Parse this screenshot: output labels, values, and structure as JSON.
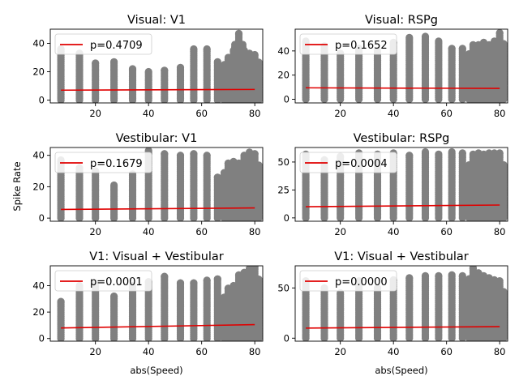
{
  "figure": {
    "ylabel": "Spike Rate",
    "xlabel": "abs(Speed)"
  },
  "colors": {
    "points": "#808080",
    "fit": "#e00000"
  },
  "chart_data": [
    {
      "type": "scatter",
      "title": "Visual: V1",
      "legend": "p=0.4709",
      "legend_position": "upper left",
      "xlim": [
        3,
        83
      ],
      "ylim": [
        -2,
        50
      ],
      "xticks": [
        20,
        40,
        60,
        80
      ],
      "yticks": [
        0,
        20,
        40
      ],
      "fit": {
        "x": [
          7,
          80
        ],
        "y": [
          7.0,
          7.5
        ]
      },
      "columns": [
        {
          "x": 7,
          "ymax": 36
        },
        {
          "x": 14,
          "ymax": 33
        },
        {
          "x": 20,
          "ymax": 26
        },
        {
          "x": 27,
          "ymax": 27
        },
        {
          "x": 34,
          "ymax": 22
        },
        {
          "x": 40,
          "ymax": 20
        },
        {
          "x": 46,
          "ymax": 21
        },
        {
          "x": 52,
          "ymax": 23
        },
        {
          "x": 57,
          "ymax": 36
        },
        {
          "x": 62,
          "ymax": 36
        },
        {
          "x": 66,
          "ymax": 27
        },
        {
          "x": 70,
          "ymax": 30
        },
        {
          "x": 72,
          "ymax": 35
        },
        {
          "x": 74,
          "ymax": 47
        },
        {
          "x": 76,
          "ymax": 35
        },
        {
          "x": 78,
          "ymax": 33
        },
        {
          "x": 80,
          "ymax": 32
        }
      ]
    },
    {
      "type": "scatter",
      "title": "Visual: RSPg",
      "legend": "p=0.1652",
      "legend_position": "upper left",
      "xlim": [
        3,
        83
      ],
      "ylim": [
        -3,
        58
      ],
      "xticks": [
        20,
        40,
        60,
        80
      ],
      "yticks": [
        0,
        20,
        40
      ],
      "fit": {
        "x": [
          7,
          80
        ],
        "y": [
          9.5,
          9.0
        ]
      },
      "columns": [
        {
          "x": 7,
          "ymax": 48
        },
        {
          "x": 14,
          "ymax": 44
        },
        {
          "x": 20,
          "ymax": 38
        },
        {
          "x": 27,
          "ymax": 42
        },
        {
          "x": 34,
          "ymax": 40
        },
        {
          "x": 40,
          "ymax": 47
        },
        {
          "x": 46,
          "ymax": 51
        },
        {
          "x": 52,
          "ymax": 52
        },
        {
          "x": 57,
          "ymax": 48
        },
        {
          "x": 62,
          "ymax": 42
        },
        {
          "x": 66,
          "ymax": 42
        },
        {
          "x": 70,
          "ymax": 45
        },
        {
          "x": 72,
          "ymax": 45
        },
        {
          "x": 74,
          "ymax": 47
        },
        {
          "x": 76,
          "ymax": 45
        },
        {
          "x": 78,
          "ymax": 48
        },
        {
          "x": 80,
          "ymax": 55
        }
      ]
    },
    {
      "type": "scatter",
      "title": "Vestibular: V1",
      "legend": "p=0.1679",
      "legend_position": "upper left",
      "xlim": [
        3,
        83
      ],
      "ylim": [
        -2,
        45
      ],
      "xticks": [
        20,
        40,
        60,
        80
      ],
      "yticks": [
        0,
        20,
        40
      ],
      "fit": {
        "x": [
          7,
          80
        ],
        "y": [
          5.5,
          6.5
        ]
      },
      "columns": [
        {
          "x": 7,
          "ymax": 37
        },
        {
          "x": 14,
          "ymax": 32
        },
        {
          "x": 20,
          "ymax": 30
        },
        {
          "x": 27,
          "ymax": 21
        },
        {
          "x": 34,
          "ymax": 28
        },
        {
          "x": 40,
          "ymax": 43
        },
        {
          "x": 46,
          "ymax": 41
        },
        {
          "x": 52,
          "ymax": 40
        },
        {
          "x": 57,
          "ymax": 41
        },
        {
          "x": 62,
          "ymax": 40
        },
        {
          "x": 66,
          "ymax": 26
        },
        {
          "x": 70,
          "ymax": 35
        },
        {
          "x": 72,
          "ymax": 36
        },
        {
          "x": 74,
          "ymax": 35
        },
        {
          "x": 76,
          "ymax": 40
        },
        {
          "x": 78,
          "ymax": 42
        },
        {
          "x": 80,
          "ymax": 41
        }
      ]
    },
    {
      "type": "scatter",
      "title": "Vestibular: RSPg",
      "legend": "p=0.0004",
      "legend_position": "upper left",
      "xlim": [
        3,
        83
      ],
      "ylim": [
        -3,
        63
      ],
      "xticks": [
        20,
        40,
        60,
        80
      ],
      "yticks": [
        0,
        25,
        50
      ],
      "fit": {
        "x": [
          7,
          80
        ],
        "y": [
          10.0,
          11.5
        ]
      },
      "columns": [
        {
          "x": 7,
          "ymax": 57
        },
        {
          "x": 14,
          "ymax": 52
        },
        {
          "x": 20,
          "ymax": 55
        },
        {
          "x": 27,
          "ymax": 58
        },
        {
          "x": 34,
          "ymax": 57
        },
        {
          "x": 40,
          "ymax": 58
        },
        {
          "x": 46,
          "ymax": 56
        },
        {
          "x": 52,
          "ymax": 59
        },
        {
          "x": 57,
          "ymax": 57
        },
        {
          "x": 62,
          "ymax": 59
        },
        {
          "x": 66,
          "ymax": 58
        },
        {
          "x": 70,
          "ymax": 57
        },
        {
          "x": 72,
          "ymax": 58
        },
        {
          "x": 74,
          "ymax": 57
        },
        {
          "x": 76,
          "ymax": 58
        },
        {
          "x": 78,
          "ymax": 58
        },
        {
          "x": 80,
          "ymax": 58
        }
      ]
    },
    {
      "type": "scatter",
      "title": "V1: Visual + Vestibular",
      "legend": "p=0.0001",
      "legend_position": "upper left",
      "xlim": [
        3,
        83
      ],
      "ylim": [
        -2,
        55
      ],
      "xticks": [
        20,
        40,
        60,
        80
      ],
      "yticks": [
        0,
        20,
        40
      ],
      "fit": {
        "x": [
          7,
          80
        ],
        "y": [
          8.0,
          10.5
        ]
      },
      "columns": [
        {
          "x": 7,
          "ymax": 28
        },
        {
          "x": 14,
          "ymax": 40
        },
        {
          "x": 20,
          "ymax": 42
        },
        {
          "x": 27,
          "ymax": 32
        },
        {
          "x": 34,
          "ymax": 40
        },
        {
          "x": 40,
          "ymax": 43
        },
        {
          "x": 46,
          "ymax": 47
        },
        {
          "x": 52,
          "ymax": 42
        },
        {
          "x": 57,
          "ymax": 42
        },
        {
          "x": 62,
          "ymax": 44
        },
        {
          "x": 66,
          "ymax": 45
        },
        {
          "x": 70,
          "ymax": 38
        },
        {
          "x": 72,
          "ymax": 40
        },
        {
          "x": 74,
          "ymax": 48
        },
        {
          "x": 76,
          "ymax": 50
        },
        {
          "x": 78,
          "ymax": 53
        },
        {
          "x": 80,
          "ymax": 55
        }
      ]
    },
    {
      "type": "scatter",
      "title": "V1: Visual + Vestibular",
      "legend": "p=0.0000",
      "legend_position": "upper left",
      "xlim": [
        3,
        83
      ],
      "ylim": [
        -3,
        72
      ],
      "xticks": [
        20,
        40,
        60,
        80
      ],
      "yticks": [
        0,
        50
      ],
      "fit": {
        "x": [
          7,
          80
        ],
        "y": [
          10.0,
          11.5
        ]
      },
      "columns": [
        {
          "x": 7,
          "ymax": 57
        },
        {
          "x": 14,
          "ymax": 50
        },
        {
          "x": 20,
          "ymax": 45
        },
        {
          "x": 27,
          "ymax": 57
        },
        {
          "x": 34,
          "ymax": 50
        },
        {
          "x": 40,
          "ymax": 58
        },
        {
          "x": 46,
          "ymax": 60
        },
        {
          "x": 52,
          "ymax": 62
        },
        {
          "x": 57,
          "ymax": 62
        },
        {
          "x": 62,
          "ymax": 63
        },
        {
          "x": 66,
          "ymax": 62
        },
        {
          "x": 70,
          "ymax": 70
        },
        {
          "x": 72,
          "ymax": 65
        },
        {
          "x": 74,
          "ymax": 62
        },
        {
          "x": 76,
          "ymax": 60
        },
        {
          "x": 78,
          "ymax": 58
        },
        {
          "x": 80,
          "ymax": 57
        }
      ]
    }
  ]
}
